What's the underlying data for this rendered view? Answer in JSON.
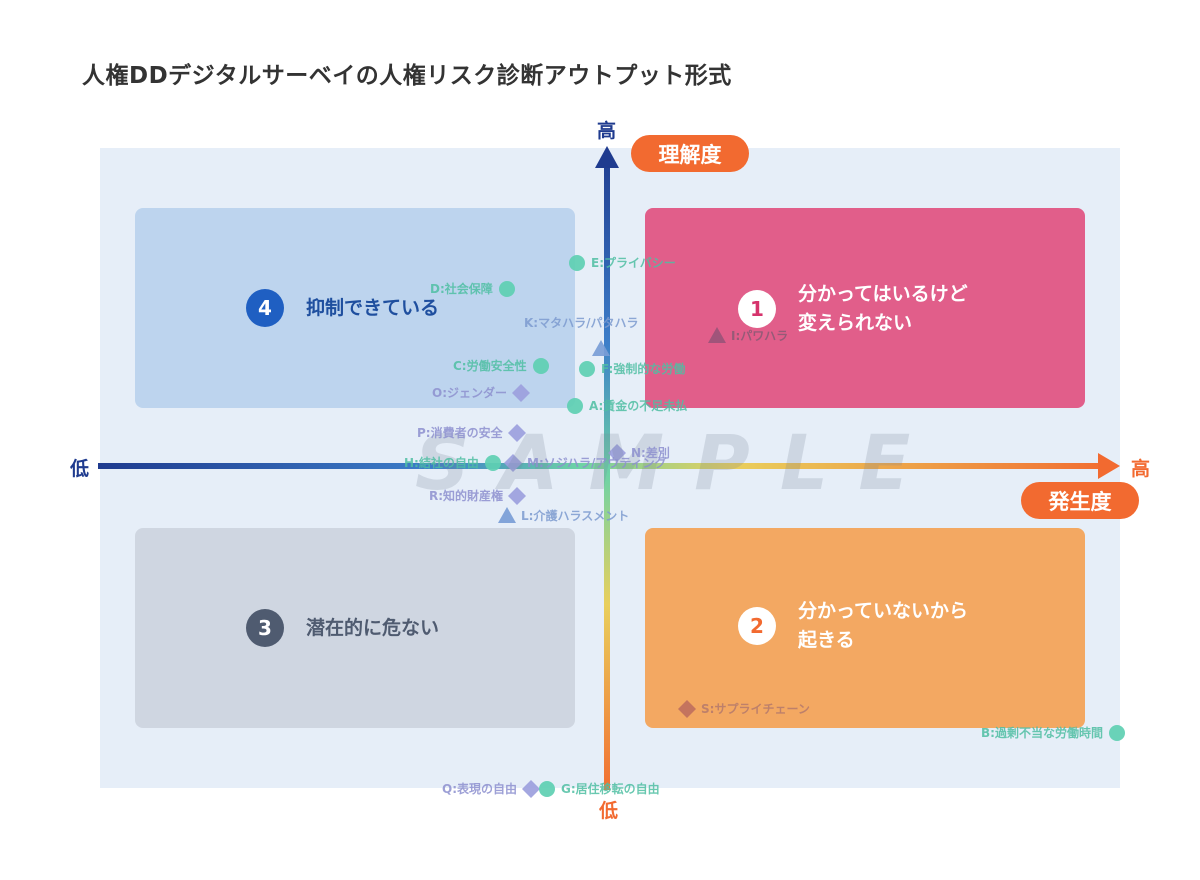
{
  "title": "人権DDデジタルサーベイの人権リスク診断アウトプット形式",
  "axes": {
    "y_high": "高",
    "y_low": "低",
    "y_name": "理解度",
    "x_high": "高",
    "x_low": "低",
    "x_name": "発生度"
  },
  "quadrants": [
    {
      "id": "q4",
      "number": "4",
      "text_line1": "抑制できている",
      "text_line2": ""
    },
    {
      "id": "q1",
      "number": "1",
      "text_line1": "分かってはいるけど",
      "text_line2": "変えられない"
    },
    {
      "id": "q3",
      "number": "3",
      "text_line1": "潜在的に危ない",
      "text_line2": ""
    },
    {
      "id": "q2",
      "number": "2",
      "text_line1": "分かっていないから",
      "text_line2": "起きる"
    }
  ],
  "watermark": "SAMPLE",
  "colors": {
    "circle": "#5ecfb2",
    "diamond": "#9c9fdd",
    "triangle_blue": "#7a9dd6",
    "triangle_mauve": "#9a5478",
    "diamond_brown": "#c0705d",
    "axis_blue": "#1f3b8f",
    "axis_orange": "#f26a30"
  },
  "chart_data": {
    "type": "scatter",
    "xlabel": "発生度",
    "ylabel": "理解度",
    "points": [
      {
        "label": "D:社会保障",
        "shape": "circle",
        "x": -1.0,
        "y": 1.77
      },
      {
        "label": "E:プライバシー",
        "shape": "circle",
        "x": -0.3,
        "y": 2.03
      },
      {
        "label": "K:マタハラ/パタハラ",
        "shape": "triangle",
        "x": -0.06,
        "y": 1.17
      },
      {
        "label": "I:パワハラ",
        "shape": "triangle",
        "x": 1.1,
        "y": 1.3
      },
      {
        "label": "C:労働安全性",
        "shape": "circle",
        "x": -0.66,
        "y": 1.0
      },
      {
        "label": "F:強制的な労働",
        "shape": "circle",
        "x": -0.2,
        "y": 0.97
      },
      {
        "label": "O:ジェンダー",
        "shape": "diamond",
        "x": -0.86,
        "y": 0.73
      },
      {
        "label": "A:賃金の不足未払",
        "shape": "circle",
        "x": -0.32,
        "y": 0.6
      },
      {
        "label": "P:消費者の安全",
        "shape": "diamond",
        "x": -0.9,
        "y": 0.33
      },
      {
        "label": "N:差別",
        "shape": "diamond",
        "x": 0.1,
        "y": 0.13
      },
      {
        "label": "H:結社の自由",
        "shape": "circle",
        "x": -1.14,
        "y": 0.03
      },
      {
        "label": "M:ソジハラ/アウティング",
        "shape": "diamond",
        "x": -0.94,
        "y": 0.03
      },
      {
        "label": "R:知的財産権",
        "shape": "diamond",
        "x": -0.9,
        "y": -0.3
      },
      {
        "label": "L:介護ハラスメント",
        "shape": "triangle",
        "x": -1.0,
        "y": -0.5
      },
      {
        "label": "S:サプライチェーン",
        "shape": "diamond",
        "x": 0.8,
        "y": -2.43
      },
      {
        "label": "B:過剰不当な労働時間",
        "shape": "circle",
        "x": 5.1,
        "y": -2.67
      },
      {
        "label": "Q:表現の自由",
        "shape": "diamond",
        "x": -0.76,
        "y": -3.23
      },
      {
        "label": "G:居住移転の自由",
        "shape": "circle",
        "x": -0.6,
        "y": -3.23
      }
    ]
  }
}
